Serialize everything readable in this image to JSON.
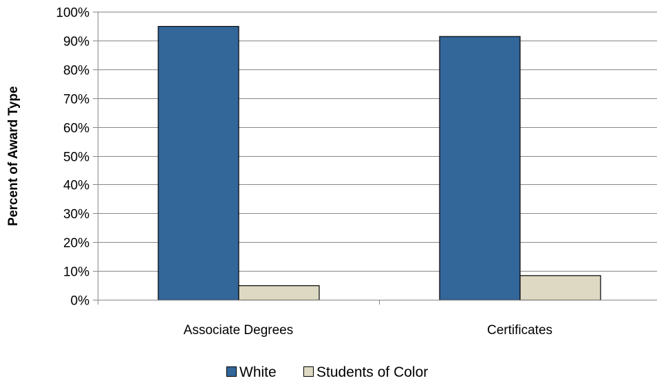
{
  "chart_data": {
    "type": "bar",
    "title": "",
    "xlabel": "",
    "ylabel": "Percent of Award Type",
    "categories": [
      "Associate Degrees",
      "Certificates"
    ],
    "series": [
      {
        "name": "White",
        "values": [
          95,
          91.5
        ],
        "color": "#336699"
      },
      {
        "name": "Students of Color",
        "values": [
          5,
          8.5
        ],
        "color": "#DDD9C3"
      }
    ],
    "ylim": [
      0,
      100
    ],
    "yticks": [
      0,
      10,
      20,
      30,
      40,
      50,
      60,
      70,
      80,
      90,
      100
    ],
    "ytick_labels": [
      "0%",
      "10%",
      "20%",
      "30%",
      "40%",
      "50%",
      "60%",
      "70%",
      "80%",
      "90%",
      "100%"
    ],
    "grid": true,
    "legend_position": "bottom"
  }
}
